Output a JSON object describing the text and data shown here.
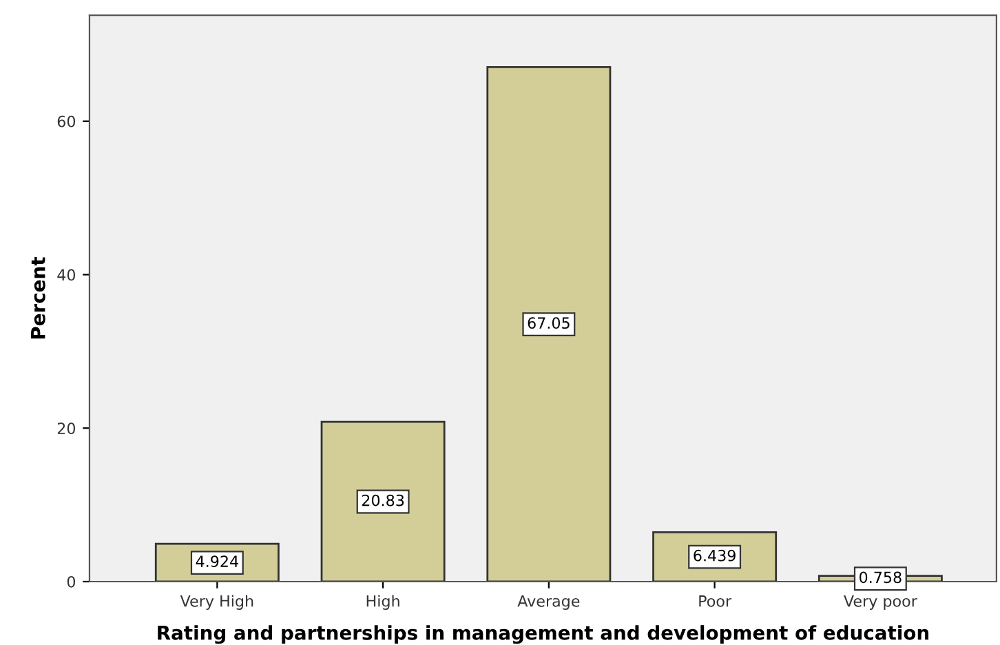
{
  "chart_data": {
    "type": "bar",
    "xlabel": "Rating and partnerships in management and development of education",
    "ylabel": "Percent",
    "categories": [
      "Very High",
      "High",
      "Average",
      "Poor",
      "Very poor"
    ],
    "values": [
      4.924,
      20.83,
      67.05,
      6.439,
      0.758
    ],
    "color": "#d3ce98",
    "data_labels": true,
    "ylim": [
      0,
      73.8
    ],
    "yticks": [
      0,
      20,
      40,
      60
    ],
    "grid": false,
    "legend": false
  }
}
